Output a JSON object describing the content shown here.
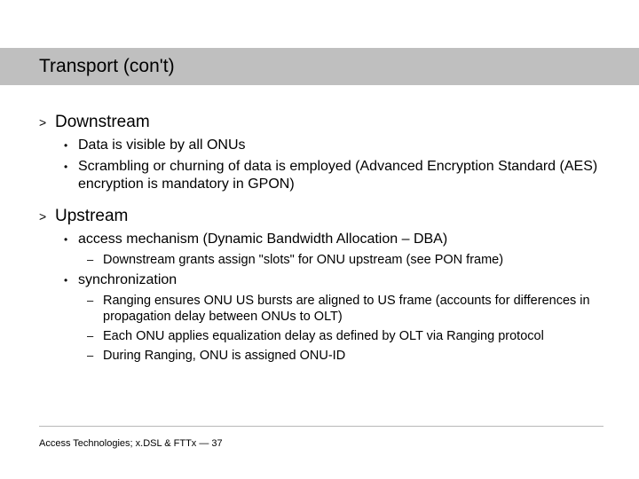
{
  "title": "Transport (con't)",
  "sections": [
    {
      "label": "Downstream",
      "bullets": [
        {
          "t": "Data is visible by all ONUs"
        },
        {
          "t": "Scrambling or churning of data is employed (Advanced Encryption Standard (AES) encryption is mandatory in GPON)"
        }
      ]
    },
    {
      "label": "Upstream",
      "bullets": [
        {
          "t": "access mechanism (Dynamic Bandwidth Allocation – DBA)",
          "sub": [
            "Downstream grants assign \"slots\" for ONU upstream (see PON frame)"
          ]
        },
        {
          "t": "synchronization",
          "sub": [
            "Ranging ensures ONU US bursts are aligned to US frame (accounts for differences in propagation delay between ONUs to OLT)",
            "Each ONU applies equalization delay as defined by OLT via Ranging protocol",
            "During Ranging, ONU is assigned ONU-ID"
          ]
        }
      ]
    }
  ],
  "footer": "Access Technologies; x.DSL & FTTx  —  37",
  "glyphs": {
    "lvl1": ">",
    "lvl2": "•",
    "lvl3": "–"
  },
  "colors": {
    "titlebar": "#bfbfbf",
    "rule": "#b8b8b8",
    "bg": "#ffffff",
    "text": "#000000"
  },
  "fontsizes": {
    "title": 21,
    "lvl1": 19,
    "lvl2": 16,
    "lvl3": 14.5,
    "footer": 11
  }
}
